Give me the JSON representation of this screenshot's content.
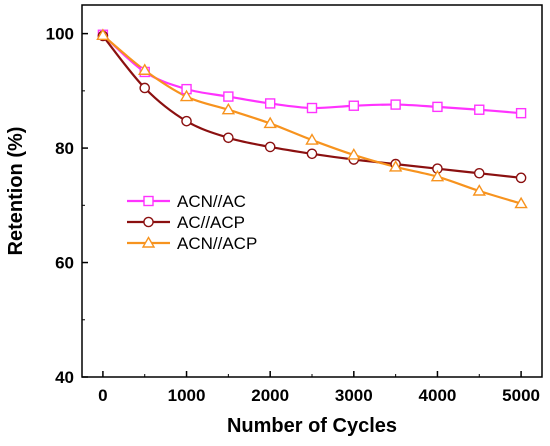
{
  "chart_data": {
    "type": "line",
    "title": "",
    "xlabel": "Number of Cycles",
    "ylabel": "Retention (%)",
    "xlim": [
      -250,
      5250
    ],
    "ylim": [
      40,
      105
    ],
    "xticks": [
      0,
      1000,
      2000,
      3000,
      4000,
      5000
    ],
    "yticks": [
      40,
      60,
      80,
      100
    ],
    "grid": false,
    "legend_position": "center-left",
    "series": [
      {
        "name": "ACN//AC",
        "color": "#ff33ff",
        "marker": "square",
        "x": [
          0,
          500,
          1000,
          1500,
          2000,
          2500,
          3000,
          3500,
          4000,
          4500,
          5000
        ],
        "values": [
          99.8,
          93.3,
          90.3,
          89.0,
          87.8,
          87.0,
          87.4,
          87.6,
          87.2,
          86.7,
          86.1
        ]
      },
      {
        "name": "AC//ACP",
        "color": "#8b1010",
        "marker": "circle",
        "x": [
          0,
          500,
          1000,
          1500,
          2000,
          2500,
          3000,
          3500,
          4000,
          4500,
          5000
        ],
        "values": [
          99.6,
          90.5,
          84.7,
          81.8,
          80.2,
          79.0,
          78.0,
          77.2,
          76.4,
          75.6,
          74.8
        ]
      },
      {
        "name": "ACN//ACP",
        "color": "#f7931e",
        "marker": "triangle",
        "x": [
          0,
          500,
          1000,
          1500,
          2000,
          2500,
          3000,
          3500,
          4000,
          4500,
          5000
        ],
        "values": [
          99.7,
          93.6,
          89.0,
          86.7,
          84.3,
          81.4,
          78.8,
          76.7,
          75.0,
          72.5,
          70.3
        ]
      }
    ]
  }
}
